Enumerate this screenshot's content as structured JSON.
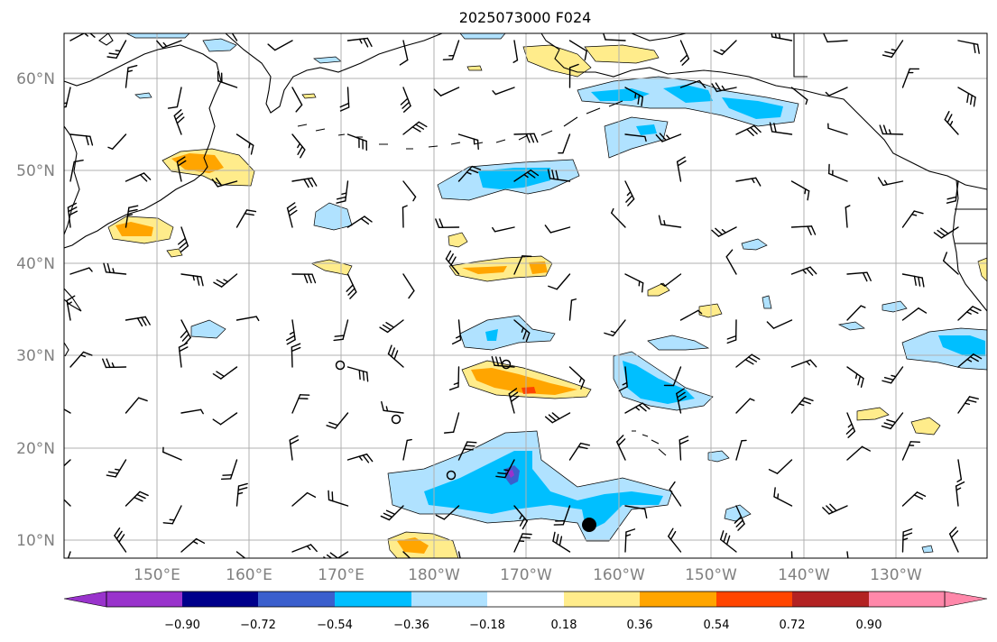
{
  "title": "2025073000 F024",
  "lat_labels": [
    "60°N",
    "50°N",
    "40°N",
    "30°N",
    "20°N",
    "10°N"
  ],
  "lon_labels": [
    "150°E",
    "160°E",
    "170°E",
    "180°W",
    "170°W",
    "160°W",
    "150°W",
    "140°W",
    "130°W"
  ],
  "colorbar": {
    "ticks": [
      "−0.90",
      "−0.72",
      "−0.54",
      "−0.36",
      "−0.18",
      "0.18",
      "0.36",
      "0.54",
      "0.72",
      "0.90"
    ],
    "colors": [
      "#9933cc",
      "#00008b",
      "#3a5fcd",
      "#00bfff",
      "#b0e2ff",
      "#ffffff",
      "#ffec8b",
      "#ffa500",
      "#ff4500",
      "#b22222",
      "#ff88aa"
    ]
  },
  "field_colors": {
    "light_blue": "#b0e2ff",
    "blue": "#00bfff",
    "mid_blue": "#3a5fcd",
    "purple": "#9933cc",
    "light_yellow": "#ffec8b",
    "orange": "#ffa500",
    "red_orange": "#ff4500"
  }
}
